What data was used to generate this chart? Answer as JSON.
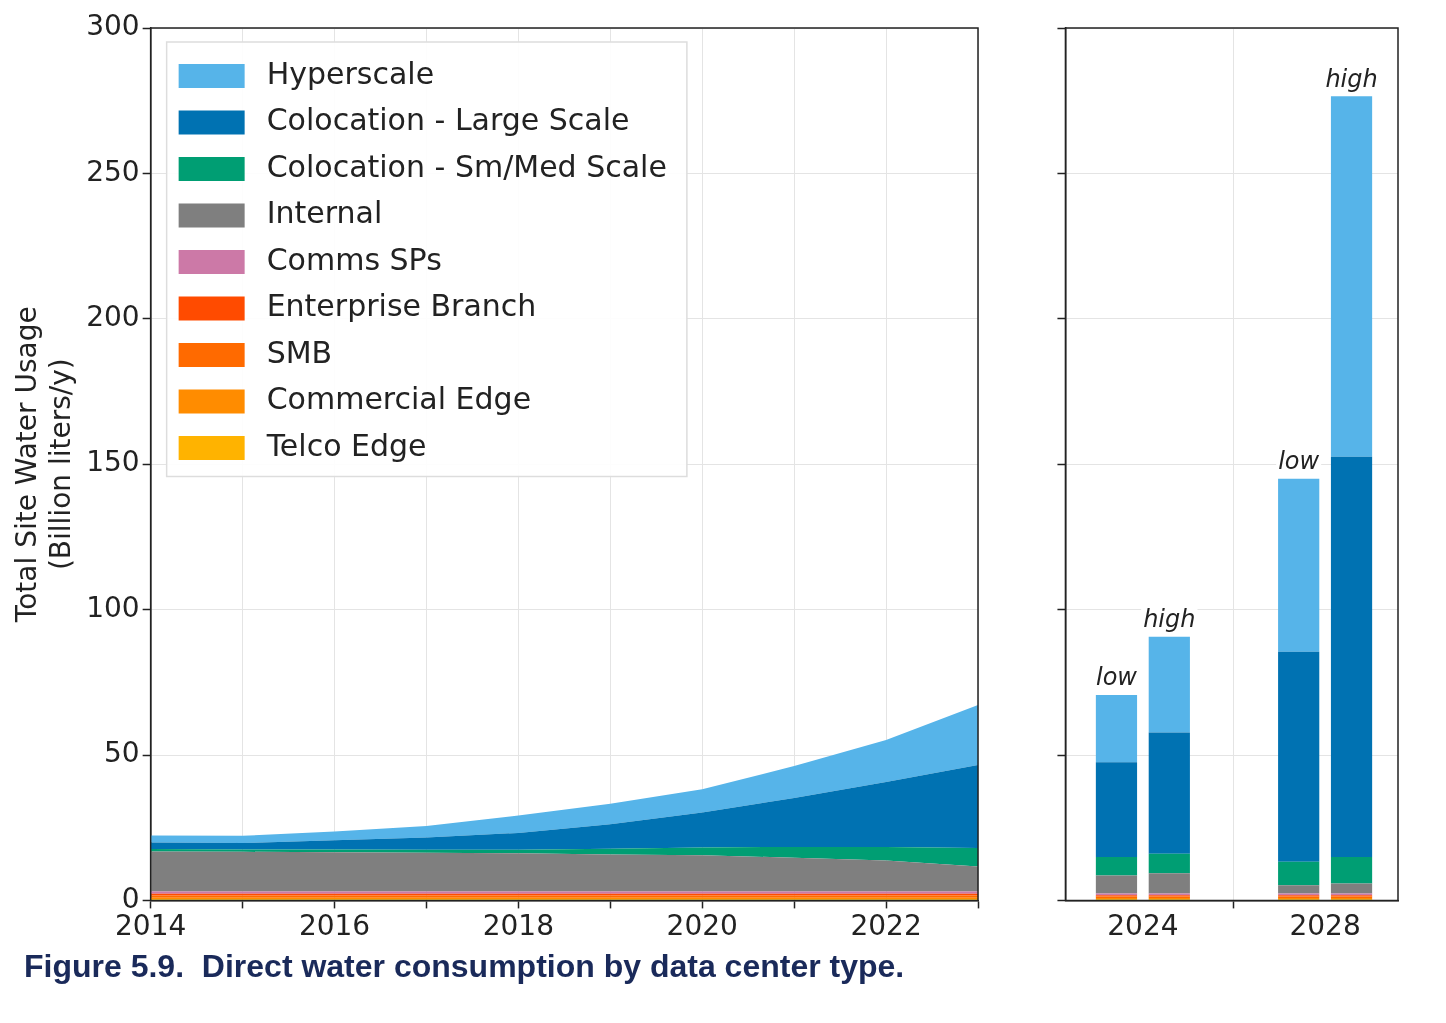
{
  "chart_data": [
    {
      "type": "area",
      "x": [
        2014,
        2015,
        2016,
        2017,
        2018,
        2019,
        2020,
        2021,
        2022,
        2023
      ],
      "xlim": [
        2014,
        2023
      ],
      "xticks": [
        2014,
        {
          "value": 2015,
          "label": null
        },
        2016,
        {
          "value": 2017,
          "label": null
        },
        2018,
        {
          "value": 2019,
          "label": null
        },
        2020,
        {
          "value": 2021,
          "label": null
        },
        2022,
        {
          "value": 2023,
          "label": null
        }
      ],
      "ylim": [
        0,
        300
      ],
      "yticks": [
        0,
        50,
        100,
        150,
        200,
        250,
        300
      ],
      "ylabel": "Total Site Water Usage\n(Billion liters/y)",
      "grid": true,
      "legend": "top left",
      "stacked": true,
      "series": [
        {
          "name": "Telco Edge",
          "color": "#ffb300",
          "values": [
            0.4,
            0.4,
            0.4,
            0.4,
            0.4,
            0.4,
            0.4,
            0.4,
            0.4,
            0.4
          ]
        },
        {
          "name": "Commercial Edge",
          "color": "#ff8c00",
          "values": [
            0.5,
            0.5,
            0.5,
            0.5,
            0.5,
            0.5,
            0.5,
            0.5,
            0.5,
            0.5
          ]
        },
        {
          "name": "SMB",
          "color": "#ff6a00",
          "values": [
            0.8,
            0.8,
            0.8,
            0.8,
            0.8,
            0.8,
            0.8,
            0.8,
            0.8,
            0.8
          ]
        },
        {
          "name": "Enterprise Branch",
          "color": "#ff4b00",
          "values": [
            0.6,
            0.6,
            0.6,
            0.6,
            0.6,
            0.6,
            0.6,
            0.6,
            0.6,
            0.6
          ]
        },
        {
          "name": "Comms SPs",
          "color": "#cc79a7",
          "values": [
            0.8,
            0.8,
            0.8,
            0.8,
            0.8,
            0.8,
            0.8,
            0.8,
            0.8,
            0.8
          ]
        },
        {
          "name": "Internal",
          "color": "#7f7f7f",
          "values": [
            13.7,
            13.6,
            13.5,
            13.3,
            13.1,
            12.7,
            12.4,
            11.6,
            10.6,
            8.6
          ]
        },
        {
          "name": "Colocation - Sm/Med Scale",
          "color": "#009e73",
          "values": [
            0.9,
            0.8,
            0.9,
            1.0,
            1.2,
            2.0,
            2.7,
            3.7,
            4.7,
            6.3
          ]
        },
        {
          "name": "Colocation - Large Scale",
          "color": "#0072b2",
          "values": [
            2.2,
            2.2,
            3.2,
            4.2,
            5.8,
            8.4,
            12,
            16.8,
            22.3,
            28.6
          ]
        },
        {
          "name": "Hyperscale",
          "color": "#56b4e9",
          "values": [
            2.4,
            2.5,
            3,
            4,
            6,
            7,
            8,
            11,
            14.5,
            20.6
          ]
        }
      ],
      "annotations": [
        "Figure 5.9.  Direct water consumption by data center type."
      ]
    },
    {
      "type": "bar",
      "stacked": true,
      "x": [
        2023.42,
        2024.58,
        2027.42,
        2028.58
      ],
      "xlim": [
        2022.3,
        2029.6
      ],
      "xticks": [
        2024,
        2028
      ],
      "ylim": [
        0,
        300
      ],
      "yticks": [
        0,
        50,
        100,
        150,
        200,
        250,
        300
      ],
      "tick_labels": "x",
      "grid": true,
      "series": [
        {
          "color": "#ffb300",
          "values": [
            0.4,
            0.4,
            0.4,
            0.4
          ]
        },
        {
          "color": "#ff8c00",
          "values": [
            0.4,
            0.4,
            0.4,
            0.4
          ]
        },
        {
          "color": "#ff6a00",
          "values": [
            0.5,
            0.5,
            0.5,
            0.5
          ]
        },
        {
          "color": "#ff4b00",
          "values": [
            0.5,
            0.5,
            0.5,
            0.5
          ]
        },
        {
          "color": "#cc79a7",
          "values": [
            0.6,
            0.6,
            0.6,
            0.6
          ]
        },
        {
          "color": "#7f7f7f",
          "values": [
            6.2,
            6.9,
            2.8,
            3.4
          ]
        },
        {
          "color": "#009e73",
          "values": [
            6.3,
            6.7,
            8.1,
            9.1
          ]
        },
        {
          "color": "#0072b2",
          "values": [
            32.6,
            41.7,
            72.2,
            137.7
          ]
        },
        {
          "color": "#56b4e9",
          "values": [
            23.1,
            33,
            59.5,
            123.9
          ]
        }
      ],
      "annotations": [
        {
          "text": "low",
          "x": 2023.42,
          "y": 70.6
        },
        {
          "text": "high",
          "x": 2024.58,
          "y": 90.7
        },
        {
          "text": "low",
          "x": 2027.42,
          "y": 145
        },
        {
          "text": "high",
          "x": 2028.58,
          "y": 276.5
        }
      ]
    }
  ]
}
